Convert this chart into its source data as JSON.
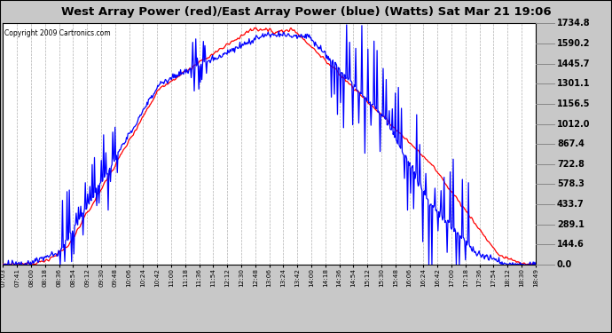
{
  "title": "West Array Power (red)/East Array Power (blue) (Watts) Sat Mar 21 19:06",
  "copyright": "Copyright 2009 Cartronics.com",
  "ylabel_right_values": [
    1734.8,
    1590.2,
    1445.7,
    1301.1,
    1156.5,
    1012.0,
    867.4,
    722.8,
    578.3,
    433.7,
    289.1,
    144.6,
    0.0
  ],
  "ymax": 1734.8,
  "ymin": 0.0,
  "red_color": "#ff0000",
  "blue_color": "#0000ff",
  "bg_color": "#c8c8c8",
  "plot_bg_color": "#ffffff",
  "grid_color": "#aaaaaa",
  "title_bg_color": "#ffffff",
  "x_labels": [
    "07:03",
    "07:41",
    "08:00",
    "08:18",
    "08:36",
    "08:54",
    "09:12",
    "09:30",
    "09:48",
    "10:06",
    "10:24",
    "10:42",
    "11:00",
    "11:18",
    "11:36",
    "11:54",
    "12:12",
    "12:30",
    "12:48",
    "13:06",
    "13:24",
    "13:42",
    "14:00",
    "14:18",
    "14:36",
    "14:54",
    "15:12",
    "15:30",
    "15:48",
    "16:06",
    "16:24",
    "16:42",
    "17:00",
    "17:18",
    "17:36",
    "17:54",
    "18:12",
    "18:30",
    "18:49"
  ]
}
